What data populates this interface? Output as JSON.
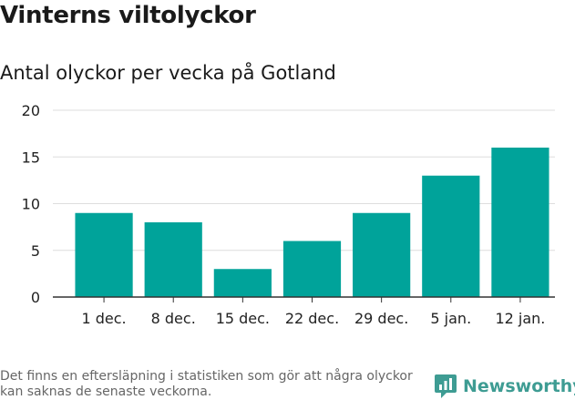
{
  "header": {
    "title": "Vinterns viltolyckor",
    "subtitle": "Antal olyckor per vecka på Gotland"
  },
  "chart_data": {
    "type": "bar",
    "categories": [
      "1 dec.",
      "8 dec.",
      "15 dec.",
      "22 dec.",
      "29 dec.",
      "5 jan.",
      "12 jan."
    ],
    "values": [
      9,
      8,
      3,
      6,
      9,
      13,
      16
    ],
    "title": "Vinterns viltolyckor",
    "subtitle": "Antal olyckor per vecka på Gotland",
    "xlabel": "",
    "ylabel": "",
    "ylim": [
      0,
      20
    ],
    "yticks": [
      0,
      5,
      10,
      15,
      20
    ],
    "grid": true,
    "bar_color": "#00a39a"
  },
  "footer": {
    "note": "Det finns en eftersläpning i statistiken som gör att några olyckor kan saknas de senaste veckorna.",
    "brand": "Newsworthy",
    "brand_color": "#3e9c93",
    "brand_icon": "bar-chart-speech-bubble-icon"
  }
}
